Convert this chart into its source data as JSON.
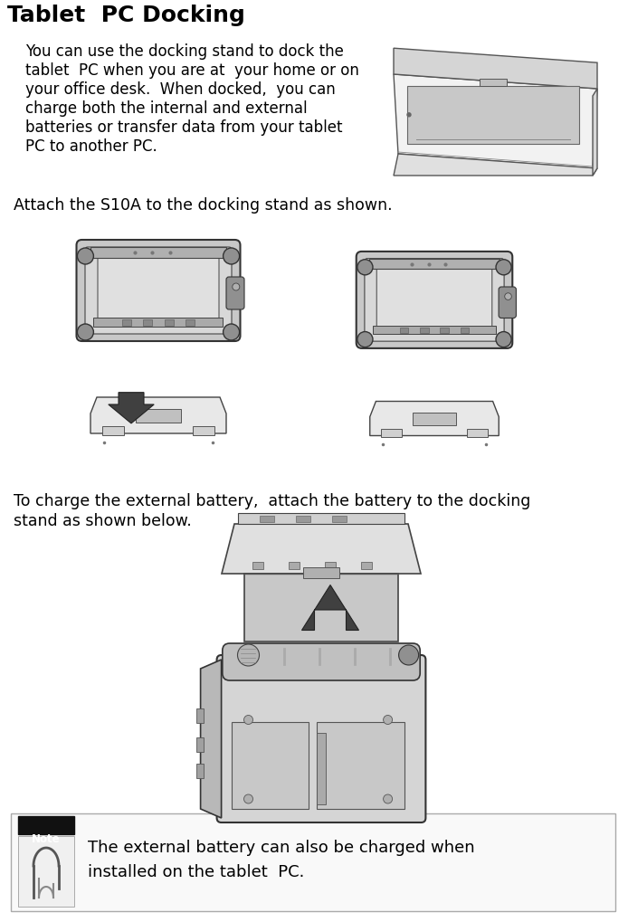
{
  "title": "Tablet  PC Docking",
  "body_lines": [
    "You can use the docking stand to dock the",
    "tablet  PC when you are at  your home or on",
    "your office desk.  When docked,  you can",
    "charge both the internal and external",
    "batteries or transfer data from your tablet",
    "PC to another PC."
  ],
  "attach_text": "Attach the S10A to the docking stand as shown.",
  "charge_line1": "To charge the external battery,  attach the battery to the docking",
  "charge_line2": "stand as shown below.",
  "note_line1": "The external battery can also be charged when",
  "note_line2": "installed on the tablet  PC.",
  "bg": "#ffffff",
  "fg": "#000000",
  "gray1": "#e8e8e8",
  "gray2": "#d0d0d0",
  "gray3": "#b8b8b8",
  "gray4": "#909090",
  "gray5": "#cccccc",
  "arrow_fill": "#404040",
  "title_fs": 18,
  "body_fs": 12.0,
  "note_fs": 13.0
}
